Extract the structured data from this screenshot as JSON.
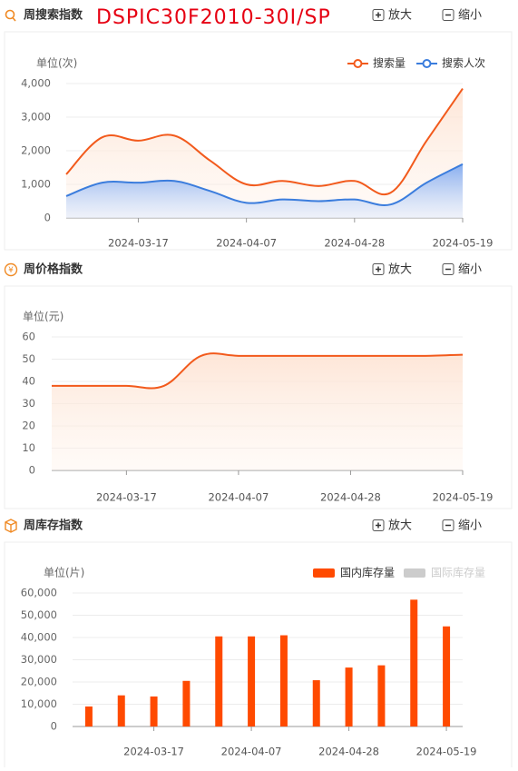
{
  "part_title": "DSPIC30F2010-30I/SP",
  "buttons": {
    "zoom_in": "放大",
    "zoom_out": "缩小"
  },
  "chart_data": [
    {
      "type": "line",
      "title": "周搜索指数",
      "unit_label": "单位(次)",
      "categories": [
        null,
        null,
        "2024-03-17",
        null,
        null,
        "2024-04-07",
        null,
        null,
        "2024-04-28",
        null,
        null,
        "2024-05-19"
      ],
      "series": [
        {
          "name": "搜索量",
          "color": "#f25a1c",
          "values": [
            1300,
            2400,
            2300,
            2450,
            1700,
            1000,
            1100,
            950,
            1100,
            750,
            2300,
            3850
          ]
        },
        {
          "name": "搜索人次",
          "color": "#3b7ddd",
          "values": [
            650,
            1050,
            1050,
            1100,
            800,
            450,
            550,
            500,
            550,
            400,
            1050,
            1600
          ]
        }
      ],
      "ylim": [
        0,
        4000
      ],
      "yticks": [
        0,
        {
          "value": 1000,
          "label": "1,000"
        },
        {
          "value": 2000,
          "label": "2,000"
        },
        {
          "value": 3000,
          "label": "3,000"
        },
        {
          "value": 4000,
          "label": "4,000"
        }
      ],
      "grid": true,
      "legend": "top-right"
    },
    {
      "type": "line",
      "title": "周价格指数",
      "unit_label": "单位(元)",
      "categories": [
        null,
        null,
        "2024-03-17",
        null,
        null,
        "2024-04-07",
        null,
        null,
        "2024-04-28",
        null,
        null,
        "2024-05-19"
      ],
      "series": [
        {
          "color": "#f25a1c",
          "values": [
            38,
            38,
            38,
            38,
            51.5,
            51.5,
            51.5,
            51.5,
            51.5,
            51.5,
            51.5,
            52
          ]
        }
      ],
      "ylim": [
        0,
        60
      ],
      "yticks": [
        0,
        10,
        20,
        30,
        40,
        50,
        60
      ],
      "grid": true
    },
    {
      "type": "bar",
      "title": "周库存指数",
      "unit_label": "单位(片)",
      "categories": [
        null,
        null,
        "2024-03-17",
        null,
        null,
        "2024-04-07",
        null,
        null,
        "2024-04-28",
        null,
        null,
        "2024-05-19"
      ],
      "series": [
        {
          "name": "国内库存量",
          "color": "#ff4a00",
          "visible": true,
          "values": [
            9000,
            14000,
            13500,
            20500,
            40500,
            40500,
            41000,
            20800,
            26500,
            27500,
            57000,
            45000
          ]
        },
        {
          "name": "国际库存量",
          "color": "#cccccc",
          "visible": false,
          "values": [
            null,
            null,
            null,
            null,
            null,
            null,
            null,
            null,
            null,
            null,
            null,
            null
          ]
        }
      ],
      "ylim": [
        0,
        60000
      ],
      "yticks": [
        0,
        {
          "value": 10000,
          "label": "10,000"
        },
        {
          "value": 20000,
          "label": "20,000"
        },
        {
          "value": 30000,
          "label": "30,000"
        },
        {
          "value": 40000,
          "label": "40,000"
        },
        {
          "value": 50000,
          "label": "50,000"
        },
        {
          "value": 60000,
          "label": "60,000"
        }
      ],
      "grid": true,
      "legend": "top-right"
    }
  ]
}
